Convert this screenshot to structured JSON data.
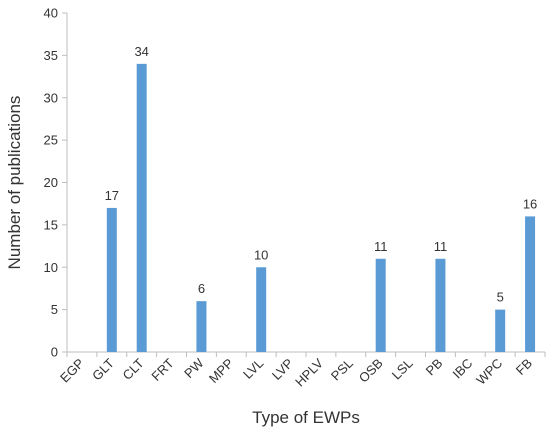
{
  "chart_data": {
    "type": "bar",
    "title": "",
    "xlabel": "Type of EWPs",
    "ylabel": "Number of publications",
    "ylim": [
      0,
      40
    ],
    "yticks": [
      0,
      5,
      10,
      15,
      20,
      25,
      30,
      35,
      40
    ],
    "grid": false,
    "legend": "none",
    "bar_color": "#5b9bd5",
    "categories": [
      "EGP",
      "GLT",
      "CLT",
      "FRT",
      "PW",
      "MPP",
      "LVL",
      "LVP",
      "HPLV",
      "PSL",
      "OSB",
      "LSL",
      "PB",
      "IBC",
      "WPC",
      "FB"
    ],
    "values": [
      0,
      17,
      34,
      0,
      6,
      0,
      10,
      0,
      0,
      0,
      11,
      0,
      11,
      0,
      5,
      16
    ],
    "data_labels": [
      "",
      "17",
      "34",
      "",
      "6",
      "",
      "10",
      "",
      "",
      "",
      "11",
      "",
      "11",
      "",
      "5",
      "16"
    ]
  }
}
